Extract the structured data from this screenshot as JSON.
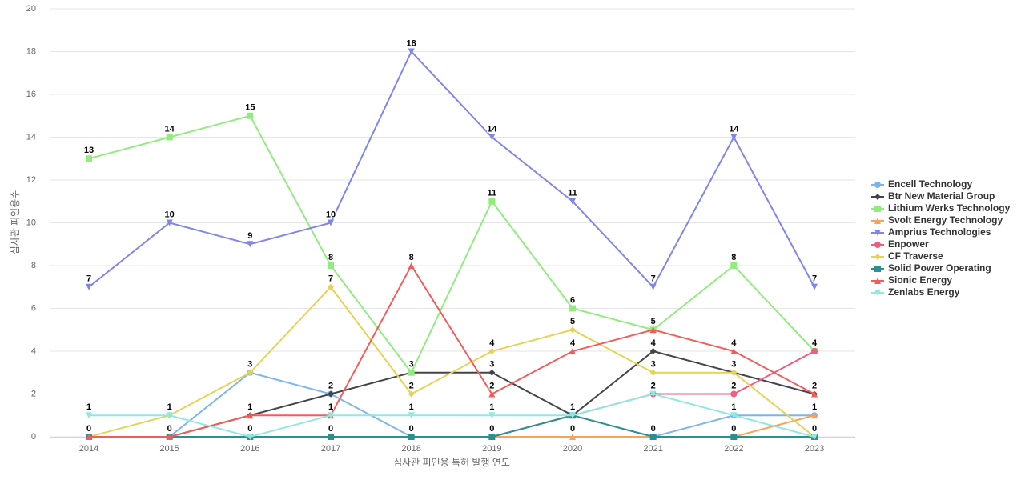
{
  "chart_data": {
    "type": "line",
    "x_label": "심사관 피인용 특허 발행 연도",
    "y_label": "심사관 피인용수",
    "categories": [
      "2014",
      "2015",
      "2016",
      "2017",
      "2018",
      "2019",
      "2020",
      "2021",
      "2022",
      "2023"
    ],
    "ylim": [
      0,
      20
    ],
    "yticks": [
      0,
      2,
      4,
      6,
      8,
      10,
      12,
      14,
      16,
      18,
      20
    ],
    "grid": true,
    "legend": "right",
    "series": [
      {
        "name": "Encell Technology",
        "color": "#7cb5ec",
        "marker": "circle",
        "values": [
          0,
          0,
          3,
          2,
          0,
          0,
          1,
          0,
          1,
          1
        ]
      },
      {
        "name": "Btr New Material Group",
        "color": "#434348",
        "marker": "diamond",
        "values": [
          0,
          0,
          1,
          2,
          3,
          3,
          1,
          4,
          3,
          2
        ]
      },
      {
        "name": "Lithium Werks Technology",
        "color": "#90ed7d",
        "marker": "square",
        "values": [
          13,
          14,
          15,
          8,
          3,
          11,
          6,
          5,
          8,
          4
        ]
      },
      {
        "name": "Svolt Energy Technology",
        "color": "#f7a35c",
        "marker": "triangle",
        "values": [
          0,
          0,
          0,
          0,
          0,
          0,
          0,
          0,
          0,
          1
        ]
      },
      {
        "name": "Amprius Technologies",
        "color": "#8085e9",
        "marker": "triangle-down",
        "values": [
          7,
          10,
          9,
          10,
          18,
          14,
          11,
          7,
          14,
          7
        ]
      },
      {
        "name": "Enpower",
        "color": "#f15c80",
        "marker": "circle",
        "values": [
          0,
          0,
          0,
          0,
          0,
          0,
          1,
          2,
          2,
          4
        ]
      },
      {
        "name": "CF Traverse",
        "color": "#e4d354",
        "marker": "diamond",
        "values": [
          0,
          1,
          3,
          7,
          2,
          4,
          5,
          3,
          3,
          0
        ]
      },
      {
        "name": "Solid Power Operating",
        "color": "#2b908f",
        "marker": "square",
        "values": [
          0,
          0,
          0,
          0,
          0,
          0,
          1,
          0,
          0,
          0
        ]
      },
      {
        "name": "Sionic Energy",
        "color": "#f45b5b",
        "marker": "triangle",
        "values": [
          0,
          0,
          1,
          1,
          8,
          2,
          4,
          5,
          4,
          2
        ]
      },
      {
        "name": "Zenlabs Energy",
        "color": "#91e8e1",
        "marker": "triangle-down",
        "values": [
          1,
          1,
          0,
          1,
          1,
          1,
          1,
          2,
          1,
          0
        ]
      }
    ]
  }
}
